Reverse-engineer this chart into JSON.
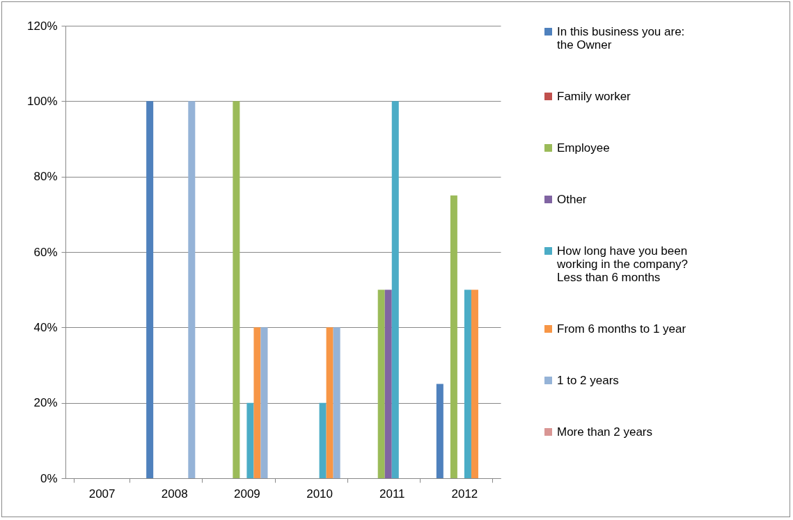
{
  "chart_data": {
    "type": "bar",
    "categories": [
      "2007",
      "2008",
      "2009",
      "2010",
      "2011",
      "2012"
    ],
    "series": [
      {
        "name": "In this business you are: the Owner",
        "color": "#4f81bd",
        "values": [
          0,
          100,
          0,
          0,
          0,
          25
        ]
      },
      {
        "name": "Family worker",
        "color": "#c0504d",
        "values": [
          0,
          0,
          0,
          0,
          0,
          0
        ]
      },
      {
        "name": "Employee",
        "color": "#9bbb59",
        "values": [
          0,
          0,
          100,
          0,
          50,
          75
        ]
      },
      {
        "name": "Other",
        "color": "#8064a2",
        "values": [
          0,
          0,
          0,
          0,
          50,
          0
        ]
      },
      {
        "name": "How long have you been working in the company? Less than 6 months",
        "color": "#4bacc6",
        "values": [
          0,
          0,
          20,
          20,
          100,
          50
        ]
      },
      {
        "name": "From 6 months to 1 year",
        "color": "#f79646",
        "values": [
          0,
          0,
          40,
          40,
          0,
          50
        ]
      },
      {
        "name": "1 to 2 years",
        "color": "#95b3d7",
        "values": [
          0,
          100,
          40,
          40,
          0,
          0
        ]
      },
      {
        "name": "More than 2 years",
        "color": "#d99694",
        "values": [
          0,
          0,
          0,
          0,
          0,
          0
        ]
      }
    ],
    "ylim": [
      0,
      120
    ],
    "yticks": [
      {
        "value": 0,
        "label": "0%"
      },
      {
        "value": 20,
        "label": "20%"
      },
      {
        "value": 40,
        "label": "40%"
      },
      {
        "value": 60,
        "label": "60%"
      },
      {
        "value": 80,
        "label": "80%"
      },
      {
        "value": 100,
        "label": "100%"
      },
      {
        "value": 120,
        "label": "120%"
      }
    ],
    "grid": "y",
    "legend": "right"
  }
}
